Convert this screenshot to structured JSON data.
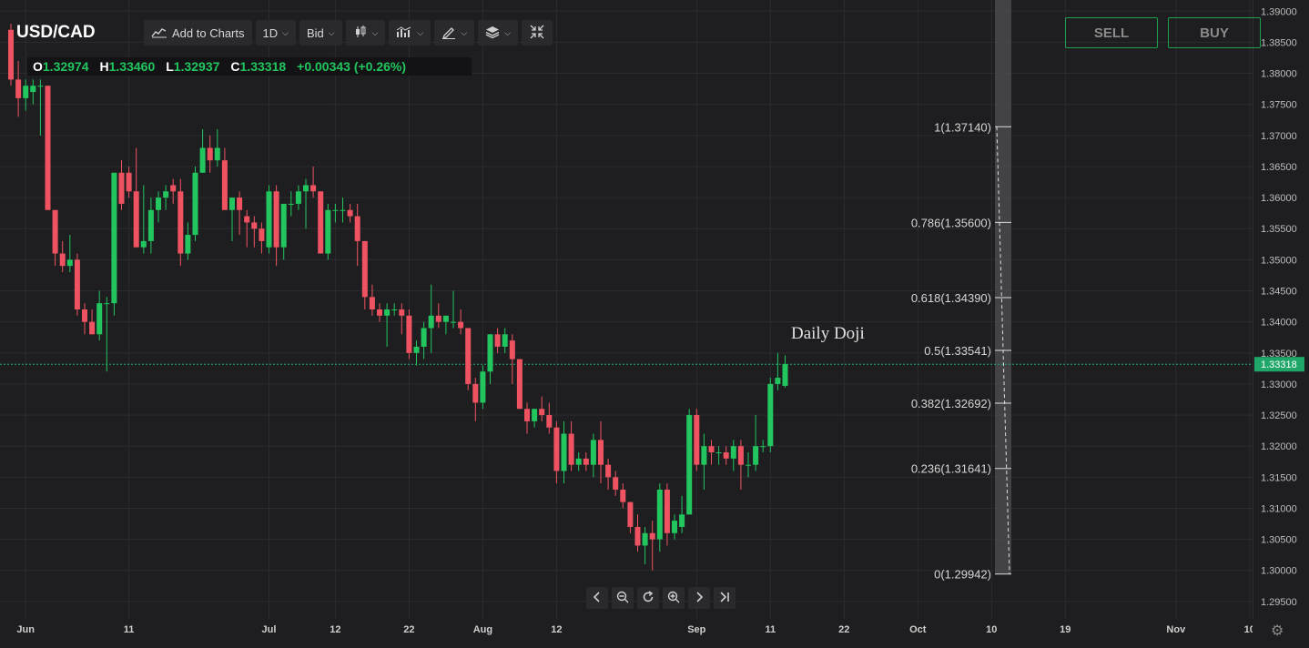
{
  "symbol": "USD/CAD",
  "toolbar": {
    "add_to_charts": "Add to Charts",
    "interval": "1D",
    "price_type": "Bid"
  },
  "ohlc": {
    "open_label": "O",
    "open": "1.32974",
    "high_label": "H",
    "high": "1.33460",
    "low_label": "L",
    "low": "1.32937",
    "close_label": "C",
    "close": "1.33318",
    "change": "+0.00343 (+0.26%)"
  },
  "trade": {
    "sell": "SELL",
    "buy": "BUY"
  },
  "annotation": "Daily Doji",
  "colors": {
    "up": "#22c55e",
    "down": "#ef5361",
    "background": "#1e1e21",
    "grid": "#2c2c30",
    "price_line": "#1fa76a",
    "fib_band": "#4a4a4d"
  },
  "icons": [
    "line-chart-icon",
    "candlestick-icon",
    "indicators-icon",
    "draw-icon",
    "layers-icon",
    "collapse-icon",
    "settings-icon"
  ],
  "nav_icons": [
    "chevron-left-icon",
    "zoom-out-icon",
    "reset-icon",
    "zoom-in-icon",
    "chevron-right-icon",
    "jump-to-end-icon"
  ],
  "chart_data": {
    "type": "candlestick",
    "title": "USD/CAD",
    "current_price": "1.33318",
    "ylim": [
      1.2922,
      1.3918
    ],
    "y_ticks": [
      "1.39000",
      "1.38500",
      "1.38000",
      "1.37500",
      "1.37000",
      "1.36500",
      "1.36000",
      "1.35500",
      "1.35000",
      "1.34500",
      "1.34000",
      "1.33500",
      "1.33000",
      "1.32500",
      "1.32000",
      "1.31500",
      "1.31000",
      "1.30500",
      "1.30000",
      "1.29500"
    ],
    "x_ticks": [
      {
        "label": "Jun",
        "bar": 2
      },
      {
        "label": "11",
        "bar": 16
      },
      {
        "label": "Jul",
        "bar": 35
      },
      {
        "label": "12",
        "bar": 44
      },
      {
        "label": "22",
        "bar": 54
      },
      {
        "label": "Aug",
        "bar": 64
      },
      {
        "label": "12",
        "bar": 74
      },
      {
        "label": "Sep",
        "bar": 93
      },
      {
        "label": "11",
        "bar": 103
      },
      {
        "label": "22",
        "bar": 113
      },
      {
        "label": "Oct",
        "bar": 123
      },
      {
        "label": "10",
        "bar": 133
      },
      {
        "label": "19",
        "bar": 143
      },
      {
        "label": "Nov",
        "bar": 158
      },
      {
        "label": "10",
        "bar": 168
      }
    ],
    "fibonacci": {
      "levels": [
        {
          "label": "1(1.37140)",
          "value": 1.3714
        },
        {
          "label": "0.786(1.35600)",
          "value": 1.356
        },
        {
          "label": "0.618(1.34390)",
          "value": 1.3439
        },
        {
          "label": "0.5(1.33541)",
          "value": 1.33541
        },
        {
          "label": "0.382(1.32692)",
          "value": 1.32692
        },
        {
          "label": "0.236(1.31641)",
          "value": 1.31641
        },
        {
          "label": "0(1.29942)",
          "value": 1.29942
        }
      ]
    },
    "candles": [
      [
        1.387,
        1.388,
        1.378,
        1.379
      ],
      [
        1.379,
        1.382,
        1.373,
        1.376
      ],
      [
        1.376,
        1.379,
        1.374,
        1.378
      ],
      [
        1.377,
        1.379,
        1.375,
        1.378
      ],
      [
        1.378,
        1.379,
        1.37,
        1.378
      ],
      [
        1.378,
        1.378,
        1.358,
        1.358
      ],
      [
        1.358,
        1.358,
        1.349,
        1.351
      ],
      [
        1.351,
        1.353,
        1.348,
        1.349
      ],
      [
        1.349,
        1.354,
        1.348,
        1.35
      ],
      [
        1.35,
        1.351,
        1.341,
        1.342
      ],
      [
        1.342,
        1.343,
        1.338,
        1.34
      ],
      [
        1.34,
        1.342,
        1.338,
        1.338
      ],
      [
        1.338,
        1.345,
        1.337,
        1.343
      ],
      [
        1.343,
        1.344,
        1.332,
        1.343
      ],
      [
        1.343,
        1.364,
        1.341,
        1.364
      ],
      [
        1.364,
        1.366,
        1.358,
        1.359
      ],
      [
        1.364,
        1.365,
        1.36,
        1.361
      ],
      [
        1.361,
        1.368,
        1.352,
        1.352
      ],
      [
        1.352,
        1.362,
        1.351,
        1.353
      ],
      [
        1.353,
        1.36,
        1.351,
        1.358
      ],
      [
        1.358,
        1.361,
        1.356,
        1.36
      ],
      [
        1.36,
        1.362,
        1.358,
        1.361
      ],
      [
        1.362,
        1.363,
        1.359,
        1.361
      ],
      [
        1.361,
        1.363,
        1.349,
        1.351
      ],
      [
        1.351,
        1.356,
        1.35,
        1.354
      ],
      [
        1.354,
        1.365,
        1.353,
        1.364
      ],
      [
        1.364,
        1.371,
        1.364,
        1.368
      ],
      [
        1.368,
        1.37,
        1.364,
        1.366
      ],
      [
        1.366,
        1.371,
        1.365,
        1.368
      ],
      [
        1.366,
        1.368,
        1.358,
        1.358
      ],
      [
        1.358,
        1.36,
        1.353,
        1.36
      ],
      [
        1.36,
        1.361,
        1.354,
        1.358
      ],
      [
        1.357,
        1.358,
        1.352,
        1.356
      ],
      [
        1.356,
        1.357,
        1.352,
        1.355
      ],
      [
        1.355,
        1.356,
        1.351,
        1.353
      ],
      [
        1.352,
        1.362,
        1.351,
        1.361
      ],
      [
        1.361,
        1.362,
        1.349,
        1.352
      ],
      [
        1.352,
        1.359,
        1.35,
        1.359
      ],
      [
        1.359,
        1.361,
        1.357,
        1.359
      ],
      [
        1.359,
        1.362,
        1.358,
        1.361
      ],
      [
        1.361,
        1.363,
        1.355,
        1.362
      ],
      [
        1.362,
        1.365,
        1.36,
        1.361
      ],
      [
        1.361,
        1.361,
        1.351,
        1.351
      ],
      [
        1.351,
        1.359,
        1.35,
        1.358
      ],
      [
        1.358,
        1.359,
        1.356,
        1.358
      ],
      [
        1.358,
        1.36,
        1.356,
        1.358
      ],
      [
        1.358,
        1.359,
        1.356,
        1.357
      ],
      [
        1.357,
        1.359,
        1.349,
        1.353
      ],
      [
        1.353,
        1.353,
        1.342,
        1.344
      ],
      [
        1.344,
        1.346,
        1.341,
        1.342
      ],
      [
        1.342,
        1.343,
        1.34,
        1.341
      ],
      [
        1.341,
        1.343,
        1.336,
        1.342
      ],
      [
        1.342,
        1.343,
        1.341,
        1.342
      ],
      [
        1.342,
        1.343,
        1.338,
        1.341
      ],
      [
        1.341,
        1.342,
        1.334,
        1.335
      ],
      [
        1.335,
        1.337,
        1.333,
        1.336
      ],
      [
        1.336,
        1.34,
        1.334,
        1.339
      ],
      [
        1.339,
        1.346,
        1.335,
        1.341
      ],
      [
        1.341,
        1.343,
        1.339,
        1.34
      ],
      [
        1.34,
        1.341,
        1.338,
        1.341
      ],
      [
        1.34,
        1.345,
        1.339,
        1.34
      ],
      [
        1.34,
        1.342,
        1.338,
        1.339
      ],
      [
        1.339,
        1.339,
        1.329,
        1.33
      ],
      [
        1.33,
        1.331,
        1.324,
        1.327
      ],
      [
        1.327,
        1.333,
        1.326,
        1.332
      ],
      [
        1.332,
        1.338,
        1.33,
        1.338
      ],
      [
        1.338,
        1.339,
        1.335,
        1.336
      ],
      [
        1.336,
        1.339,
        1.335,
        1.338
      ],
      [
        1.337,
        1.338,
        1.33,
        1.334
      ],
      [
        1.334,
        1.334,
        1.326,
        1.326
      ],
      [
        1.326,
        1.327,
        1.322,
        1.324
      ],
      [
        1.324,
        1.326,
        1.323,
        1.326
      ],
      [
        1.326,
        1.328,
        1.324,
        1.325
      ],
      [
        1.325,
        1.327,
        1.322,
        1.323
      ],
      [
        1.323,
        1.324,
        1.314,
        1.316
      ],
      [
        1.316,
        1.324,
        1.314,
        1.322
      ],
      [
        1.322,
        1.324,
        1.316,
        1.317
      ],
      [
        1.317,
        1.319,
        1.316,
        1.318
      ],
      [
        1.318,
        1.319,
        1.316,
        1.317
      ],
      [
        1.317,
        1.322,
        1.315,
        1.321
      ],
      [
        1.321,
        1.324,
        1.314,
        1.317
      ],
      [
        1.317,
        1.318,
        1.313,
        1.315
      ],
      [
        1.315,
        1.316,
        1.312,
        1.313
      ],
      [
        1.313,
        1.314,
        1.31,
        1.311
      ],
      [
        1.311,
        1.311,
        1.306,
        1.307
      ],
      [
        1.307,
        1.309,
        1.303,
        1.304
      ],
      [
        1.304,
        1.307,
        1.301,
        1.306
      ],
      [
        1.306,
        1.308,
        1.3,
        1.305
      ],
      [
        1.305,
        1.314,
        1.303,
        1.313
      ],
      [
        1.313,
        1.314,
        1.304,
        1.306
      ],
      [
        1.306,
        1.309,
        1.305,
        1.308
      ],
      [
        1.307,
        1.312,
        1.306,
        1.309
      ],
      [
        1.309,
        1.326,
        1.309,
        1.325
      ],
      [
        1.325,
        1.326,
        1.316,
        1.317
      ],
      [
        1.317,
        1.322,
        1.313,
        1.32
      ],
      [
        1.32,
        1.321,
        1.317,
        1.319
      ],
      [
        1.319,
        1.32,
        1.317,
        1.319
      ],
      [
        1.319,
        1.32,
        1.317,
        1.318
      ],
      [
        1.318,
        1.321,
        1.316,
        1.32
      ],
      [
        1.32,
        1.321,
        1.313,
        1.317
      ],
      [
        1.317,
        1.319,
        1.315,
        1.317
      ],
      [
        1.317,
        1.325,
        1.316,
        1.32
      ],
      [
        1.32,
        1.321,
        1.319,
        1.32
      ],
      [
        1.32,
        1.331,
        1.319,
        1.33
      ],
      [
        1.33,
        1.335,
        1.329,
        1.331
      ],
      [
        1.3297,
        1.3346,
        1.3294,
        1.3332
      ]
    ]
  }
}
